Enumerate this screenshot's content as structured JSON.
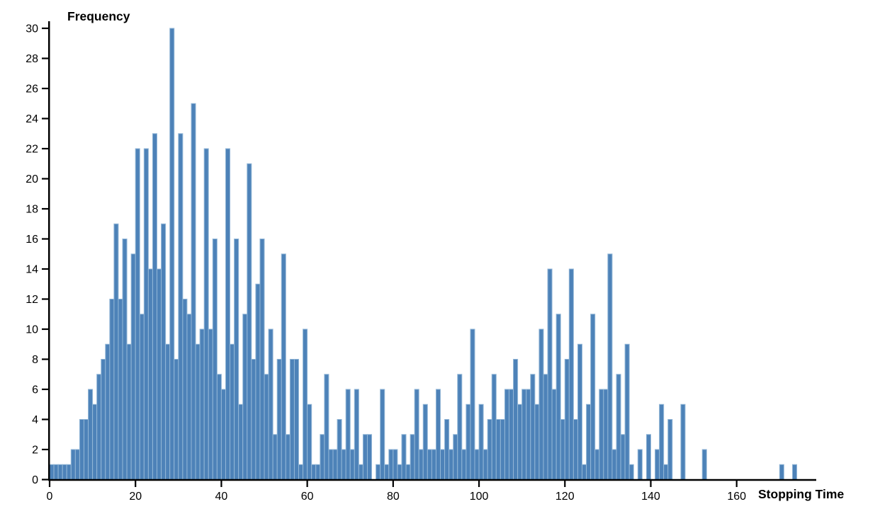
{
  "chart_data": {
    "type": "bar",
    "subtype": "histogram",
    "title": "",
    "xlabel": "Stopping Time",
    "ylabel": "Frequency",
    "x_start": 0,
    "bin_width": 1,
    "values": [
      1,
      1,
      1,
      1,
      1,
      2,
      2,
      4,
      4,
      6,
      5,
      7,
      8,
      9,
      12,
      17,
      12,
      16,
      9,
      15,
      22,
      11,
      22,
      14,
      23,
      14,
      17,
      9,
      30,
      8,
      23,
      12,
      11,
      25,
      9,
      10,
      22,
      10,
      16,
      7,
      6,
      22,
      9,
      16,
      5,
      11,
      21,
      8,
      13,
      16,
      7,
      10,
      3,
      8,
      15,
      3,
      8,
      8,
      1,
      10,
      5,
      1,
      1,
      3,
      7,
      2,
      2,
      4,
      2,
      6,
      2,
      6,
      1,
      3,
      3,
      0,
      1,
      6,
      1,
      2,
      2,
      1,
      3,
      1,
      3,
      6,
      2,
      5,
      2,
      2,
      6,
      2,
      4,
      2,
      3,
      7,
      2,
      5,
      10,
      2,
      5,
      2,
      4,
      7,
      4,
      4,
      6,
      6,
      8,
      5,
      6,
      6,
      7,
      5,
      10,
      7,
      14,
      6,
      11,
      4,
      8,
      14,
      4,
      9,
      1,
      5,
      11,
      2,
      6,
      6,
      15,
      2,
      7,
      3,
      9,
      1,
      0,
      2,
      0,
      3,
      0,
      2,
      5,
      1,
      4,
      0,
      0,
      5,
      0,
      0,
      0,
      0,
      2,
      0,
      0,
      0,
      0,
      0,
      0,
      0,
      0,
      0,
      0,
      0,
      0,
      0,
      0,
      0,
      0,
      0,
      1,
      0,
      0,
      1
    ],
    "x_ticks": [
      0,
      20,
      40,
      60,
      80,
      100,
      120,
      140,
      160
    ],
    "y_ticks": [
      0,
      2,
      4,
      6,
      8,
      10,
      12,
      14,
      16,
      18,
      20,
      22,
      24,
      26,
      28,
      30
    ],
    "xlim": [
      0,
      178.5
    ],
    "ylim": [
      0,
      30
    ],
    "grid": false,
    "legend": "none",
    "bar_color": "#4d82b8",
    "bar_edge_color": "#93b7d7",
    "axis_color": "#000000",
    "background_color": "#ffffff"
  }
}
